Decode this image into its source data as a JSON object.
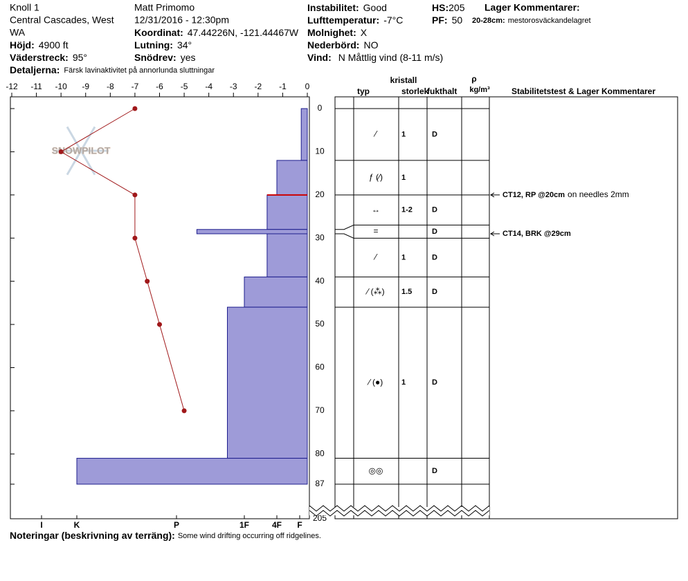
{
  "header": {
    "site": "Knoll 1",
    "range": "Central Cascades, West",
    "state": "WA",
    "elevation": {
      "label": "Höjd:",
      "value": "4900 ft"
    },
    "aspect": {
      "label": "Väderstreck:",
      "value": "95°"
    },
    "details": {
      "label": "Detaljerna:",
      "value": "Färsk lavinaktivitet på annorlunda sluttningar"
    },
    "observer": "Matt Primomo",
    "datetime": "12/31/2016 - 12:30pm",
    "coordinates": {
      "label": "Koordinat:",
      "value": "47.44226N, -121.44467W"
    },
    "slope": {
      "label": "Lutning:",
      "value": "34°"
    },
    "wind_loading": {
      "label": "Snödrev:",
      "value": "yes"
    },
    "stability": {
      "label": "Instabilitet:",
      "value": "Good"
    },
    "air_temp": {
      "label": "Lufttemperatur:",
      "value": "-7°C"
    },
    "sky": {
      "label": "Molnighet:",
      "value": "X"
    },
    "precip": {
      "label": "Nederbörd:",
      "value": "NO"
    },
    "wind": {
      "label": "Vind:",
      "value": "N Måttlig vind (8-11 m/s)"
    },
    "hs": {
      "label": "HS:",
      "value": 205
    },
    "pf": {
      "label": "PF:",
      "value": 50
    },
    "layer_comments": {
      "title": "Lager Kommentarer:",
      "items": [
        {
          "label": "20-28cm:",
          "value": "mestorosväckandelagret"
        }
      ]
    }
  },
  "chart_data": {
    "type": "snow_profile",
    "logo": "SNOWPILOT",
    "xlim": [
      -12,
      0
    ],
    "xticks": [
      -12,
      -11,
      -10,
      -9,
      -8,
      -7,
      -6,
      -5,
      -4,
      -3,
      -2,
      -1,
      0
    ],
    "ylim": [
      0,
      87
    ],
    "yticks": [
      0,
      10,
      20,
      30,
      40,
      50,
      60,
      70,
      80,
      87
    ],
    "hardness_ticks": [
      {
        "value": 6,
        "label": "I"
      },
      {
        "value": 5,
        "label": "K"
      },
      {
        "value": 4,
        "label": "P"
      },
      {
        "value": 3,
        "label": "1F"
      },
      {
        "value": 2,
        "label": "4F"
      },
      {
        "value": 1,
        "label": "F"
      }
    ],
    "bar_color": "#9e9bd8",
    "temperature": {
      "color": "#a0181a",
      "depths": [
        0,
        10,
        20,
        30,
        40,
        50,
        70
      ],
      "values": [
        -7,
        -10,
        -7,
        -7,
        -6.5,
        -6,
        -5
      ]
    },
    "table_headers": {
      "crystal": "kristall",
      "type": "typ",
      "size": "storlek",
      "moisture": "fukthalt",
      "density": "ρ",
      "density_unit": "kg/m³",
      "comments": "Stabilitetstest & Lager Kommentarer"
    },
    "layers": [
      {
        "top": 0,
        "bottom": 12,
        "hardness": 0.8,
        "grain": "⁄",
        "size": "1",
        "moisture": "D"
      },
      {
        "top": 12,
        "bottom": 20,
        "hardness": 2,
        "grain": "ƒ (⁄)",
        "size": "1",
        "moisture": null
      },
      {
        "top": 20,
        "bottom": 28,
        "hardness": 2.3,
        "grain": "↔",
        "size": "1-2",
        "moisture": "D"
      },
      {
        "top": 28,
        "bottom": 29,
        "hardness": 3.7,
        "grain": "=",
        "size": null,
        "moisture": "D"
      },
      {
        "top": 29,
        "bottom": 39,
        "hardness": 2.3,
        "grain": "⁄",
        "size": "1",
        "moisture": "D"
      },
      {
        "top": 39,
        "bottom": 46,
        "hardness": 3,
        "grain": "⁄ (⁂)",
        "size": "1.5",
        "moisture": "D"
      },
      {
        "top": 46,
        "bottom": 81,
        "hardness": 3.25,
        "grain": "⁄ (●)",
        "size": "1",
        "moisture": "D"
      },
      {
        "top": 81,
        "bottom": 87,
        "hardness": 5,
        "grain": "◎◎",
        "size": null,
        "moisture": "D"
      }
    ],
    "tests": [
      {
        "depth": 20,
        "label": "CT12, RP @20cm",
        "comment": "on needles 2mm"
      },
      {
        "depth": 29,
        "label": "CT14, BRK @29cm"
      }
    ]
  },
  "notes": {
    "label": "Noteringar (beskrivning av terräng):",
    "value": "Some wind drifting occurring off ridgelines."
  }
}
